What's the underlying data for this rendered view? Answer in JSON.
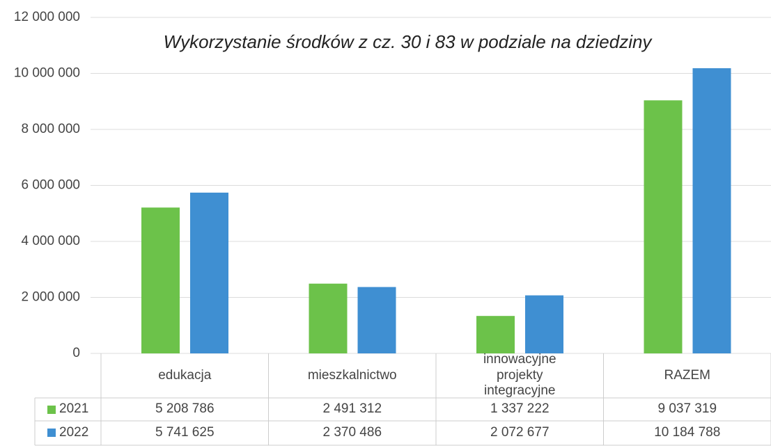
{
  "chart_data": {
    "type": "bar",
    "title": "Wykorzystanie środków z cz. 30 i 83 w podziale na dziedziny",
    "categories": [
      "edukacja",
      "mieszkalnictwo",
      "innowacyjne projekty integracyjne",
      "RAZEM"
    ],
    "series": [
      {
        "name": "2021",
        "color": "#6cc24a",
        "values": [
          5208786,
          2491312,
          1337222,
          9037319
        ],
        "value_labels": [
          "5 208 786",
          "2 491 312",
          "1 337 222",
          "9 037 319"
        ]
      },
      {
        "name": "2022",
        "color": "#3f8fd2",
        "values": [
          5741625,
          2370486,
          2072677,
          10184788
        ],
        "value_labels": [
          "5 741 625",
          "2 370 486",
          "2 072 677",
          "10 184 788"
        ]
      }
    ],
    "ylim": [
      0,
      12000000
    ],
    "yticks": [
      0,
      {
        "value": 2000000,
        "label": "2 000 000"
      },
      {
        "value": 4000000,
        "label": "4 000 000"
      },
      {
        "value": 6000000,
        "label": "6 000 000"
      },
      {
        "value": 8000000,
        "label": "8 000 000"
      },
      {
        "value": 10000000,
        "label": "10 000 000"
      },
      {
        "value": 12000000,
        "label": "12 000 000"
      }
    ],
    "grid": true
  }
}
